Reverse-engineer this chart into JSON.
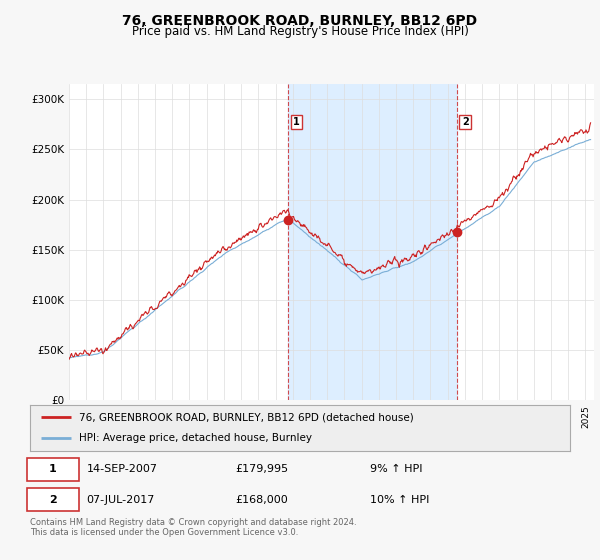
{
  "title": "76, GREENBROOK ROAD, BURNLEY, BB12 6PD",
  "subtitle": "Price paid vs. HM Land Registry's House Price Index (HPI)",
  "ylabel_ticks": [
    "£0",
    "£50K",
    "£100K",
    "£150K",
    "£200K",
    "£250K",
    "£300K"
  ],
  "ytick_values": [
    0,
    50000,
    100000,
    150000,
    200000,
    250000,
    300000
  ],
  "ylim": [
    0,
    315000
  ],
  "xlim_start": 1995.0,
  "xlim_end": 2025.5,
  "hpi_color": "#7aaed6",
  "price_color": "#cc2222",
  "shade_color": "#ddeeff",
  "marker1_x": 2007.71,
  "marker1_y": 179995,
  "marker2_x": 2017.52,
  "marker2_y": 168000,
  "legend_line1": "76, GREENBROOK ROAD, BURNLEY, BB12 6PD (detached house)",
  "legend_line2": "HPI: Average price, detached house, Burnley",
  "table_row1": [
    "1",
    "14-SEP-2007",
    "£179,995",
    "9% ↑ HPI"
  ],
  "table_row2": [
    "2",
    "07-JUL-2017",
    "£168,000",
    "10% ↑ HPI"
  ],
  "footer": "Contains HM Land Registry data © Crown copyright and database right 2024.\nThis data is licensed under the Open Government Licence v3.0.",
  "background_color": "#f7f7f7",
  "plot_bg_color": "#ffffff"
}
